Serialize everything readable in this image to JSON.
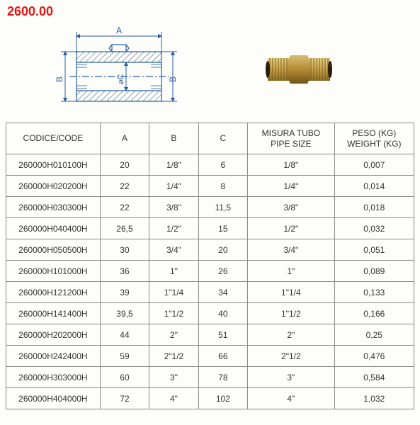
{
  "title": "2600.00",
  "diagram": {
    "labels": {
      "A": "A",
      "B_left": "B",
      "B_right": "B",
      "C": "⌀C"
    },
    "stroke": "#2a5ca8",
    "hatch": "#2a5ca8",
    "bg": "#fdfdf9"
  },
  "photo": {
    "brass_color": "#c9a24a",
    "brass_shadow": "#8a6a22",
    "brass_highlight": "#e7cf88"
  },
  "table": {
    "columns": [
      "CODICE/CODE",
      "A",
      "B",
      "C",
      "MISURA TUBO\nPIPE SIZE",
      "PESO (KG)\nWEIGHT (KG)"
    ],
    "rows": [
      [
        "260000H010100H",
        "20",
        "1/8\"",
        "6",
        "1/8\"",
        "0,007"
      ],
      [
        "260000H020200H",
        "22",
        "1/4\"",
        "8",
        "1/4\"",
        "0,014"
      ],
      [
        "260000H030300H",
        "22",
        "3/8\"",
        "11,5",
        "3/8\"",
        "0,018"
      ],
      [
        "260000H040400H",
        "26,5",
        "1/2\"",
        "15",
        "1/2\"",
        "0,032"
      ],
      [
        "260000H050500H",
        "30",
        "3/4\"",
        "20",
        "3/4\"",
        "0,051"
      ],
      [
        "260000H101000H",
        "36",
        "1\"",
        "26",
        "1\"",
        "0,089"
      ],
      [
        "260000H121200H",
        "39",
        "1\"1/4",
        "34",
        "1\"1/4",
        "0,133"
      ],
      [
        "260000H141400H",
        "39,5",
        "1\"1/2",
        "40",
        "1\"1/2",
        "0,166"
      ],
      [
        "260000H202000H",
        "44",
        "2\"",
        "51",
        "2\"",
        "0,25"
      ],
      [
        "260000H242400H",
        "59",
        "2\"1/2",
        "66",
        "2\"1/2",
        "0,476"
      ],
      [
        "260000H303000H",
        "60",
        "3\"",
        "78",
        "3\"",
        "0,584"
      ],
      [
        "260000H404000H",
        "72",
        "4\"",
        "102",
        "4\"",
        "1,032"
      ]
    ]
  }
}
